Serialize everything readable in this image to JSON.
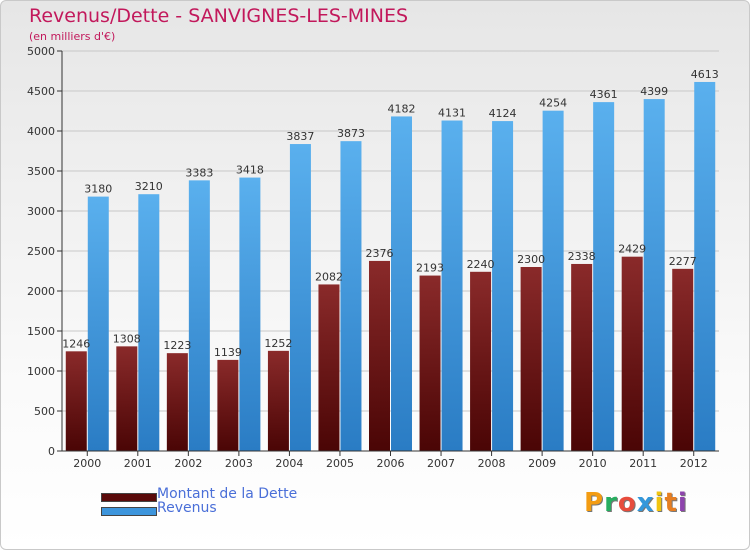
{
  "title": "Revenus/Dette - SANVIGNES-LES-MINES",
  "subtitle": "(en milliers d'€)",
  "logo": {
    "letters": [
      "P",
      "r",
      "o",
      "x",
      "i",
      "t",
      "i"
    ],
    "colors": [
      "#f39c12",
      "#27ae60",
      "#e74c3c",
      "#3498db",
      "#f1c40f",
      "#e67e22",
      "#8e44ad"
    ]
  },
  "chart_data": {
    "type": "bar",
    "categories": [
      "2000",
      "2001",
      "2002",
      "2003",
      "2004",
      "2005",
      "2006",
      "2007",
      "2008",
      "2009",
      "2010",
      "2011",
      "2012"
    ],
    "series": [
      {
        "name": "Montant de la Dette",
        "color": "#7a1a1a",
        "values": [
          1246,
          1308,
          1223,
          1139,
          1252,
          2082,
          2376,
          2193,
          2240,
          2300,
          2338,
          2429,
          2277
        ],
        "labels": [
          "1246",
          "1308",
          "1223",
          "1139",
          "1252",
          "2082",
          "2376",
          "2193",
          "2240",
          "2300",
          "2338",
          "2429",
          "2277"
        ]
      },
      {
        "name": "Revenus",
        "color": "#3d95dc",
        "values": [
          3180,
          3210,
          3383,
          3418,
          3837,
          3873,
          4182,
          4131,
          4124,
          4254,
          4361,
          4399,
          4613
        ],
        "labels": [
          "3180",
          "3210",
          "3383",
          "3418",
          "3837",
          "3873",
          "4182",
          "4131",
          "4124",
          "4254",
          "4361",
          "4399",
          "4613"
        ]
      }
    ],
    "yticks": [
      "0",
      "500",
      "1000",
      "1500",
      "2000",
      "2500",
      "3000",
      "3500",
      "4000",
      "4500",
      "5000"
    ],
    "ylim": [
      0,
      5000
    ],
    "grid": true,
    "legend": "bottom-left"
  }
}
